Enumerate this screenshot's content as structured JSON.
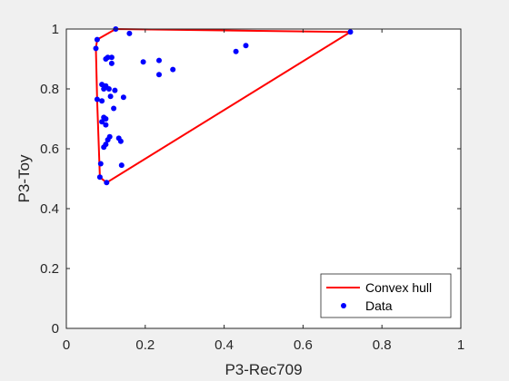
{
  "chart_data": {
    "type": "scatter",
    "title": "",
    "xlabel": "P3-Rec709",
    "ylabel": "P3-Toy",
    "xlim": [
      0,
      1
    ],
    "ylim": [
      0,
      1
    ],
    "xticks": [
      0,
      0.2,
      0.4,
      0.6,
      0.8,
      1
    ],
    "yticks": [
      0,
      0.2,
      0.4,
      0.6,
      0.8,
      1
    ],
    "xtick_labels": [
      "0",
      "0.2",
      "0.4",
      "0.6",
      "0.8",
      "1"
    ],
    "ytick_labels": [
      "0",
      "0.2",
      "0.4",
      "0.6",
      "0.8",
      "1"
    ],
    "grid": false,
    "legend_position": "bottom-right",
    "series": [
      {
        "name": "Convex hull",
        "kind": "line",
        "color": "#ff0000",
        "points": [
          [
            0.125,
            1.0
          ],
          [
            0.72,
            0.99
          ],
          [
            0.102,
            0.487
          ],
          [
            0.085,
            0.505
          ],
          [
            0.078,
            0.76
          ],
          [
            0.075,
            0.935
          ],
          [
            0.078,
            0.965
          ],
          [
            0.125,
            1.0
          ]
        ]
      },
      {
        "name": "Data",
        "kind": "scatter",
        "color": "#0000ff",
        "points": [
          [
            0.125,
            1.0
          ],
          [
            0.72,
            0.99
          ],
          [
            0.078,
            0.965
          ],
          [
            0.075,
            0.935
          ],
          [
            0.16,
            0.985
          ],
          [
            0.455,
            0.945
          ],
          [
            0.43,
            0.925
          ],
          [
            0.105,
            0.905
          ],
          [
            0.115,
            0.905
          ],
          [
            0.1,
            0.9
          ],
          [
            0.115,
            0.885
          ],
          [
            0.195,
            0.89
          ],
          [
            0.235,
            0.895
          ],
          [
            0.27,
            0.865
          ],
          [
            0.235,
            0.848
          ],
          [
            0.09,
            0.815
          ],
          [
            0.1,
            0.81
          ],
          [
            0.095,
            0.8
          ],
          [
            0.108,
            0.8
          ],
          [
            0.123,
            0.795
          ],
          [
            0.078,
            0.765
          ],
          [
            0.09,
            0.76
          ],
          [
            0.112,
            0.775
          ],
          [
            0.145,
            0.772
          ],
          [
            0.12,
            0.735
          ],
          [
            0.095,
            0.705
          ],
          [
            0.09,
            0.69
          ],
          [
            0.1,
            0.7
          ],
          [
            0.1,
            0.68
          ],
          [
            0.11,
            0.64
          ],
          [
            0.133,
            0.635
          ],
          [
            0.138,
            0.625
          ],
          [
            0.105,
            0.63
          ],
          [
            0.1,
            0.615
          ],
          [
            0.095,
            0.605
          ],
          [
            0.087,
            0.55
          ],
          [
            0.14,
            0.545
          ],
          [
            0.085,
            0.505
          ],
          [
            0.102,
            0.487
          ]
        ]
      }
    ]
  }
}
